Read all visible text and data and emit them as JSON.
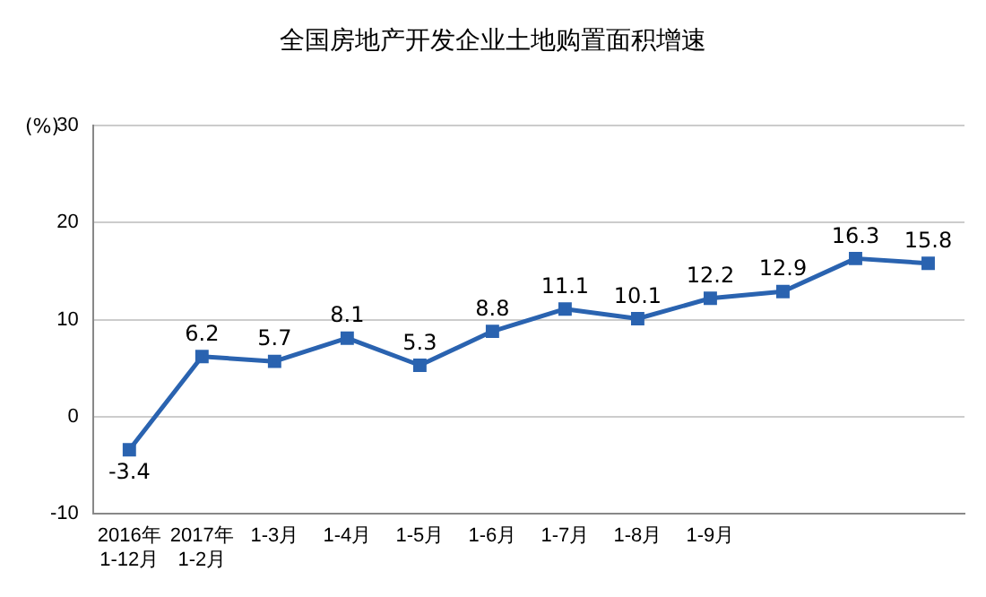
{
  "chart_data": {
    "type": "line",
    "title": "全国房地产开发企业土地购置面积增速",
    "ylabel": "(%)",
    "categories": [
      "2016年\n1-12月",
      "2017年\n1-2月",
      "1-3月",
      "1-4月",
      "1-5月",
      "1-6月",
      "1-7月",
      "1-8月",
      "1-9月",
      null,
      null,
      null
    ],
    "series": [
      {
        "color": "#2a63b0",
        "values": [
          -3.4,
          6.2,
          5.7,
          8.1,
          5.3,
          8.8,
          11.1,
          10.1,
          12.2,
          12.9,
          16.3,
          15.8
        ]
      }
    ],
    "ylim": [
      -10,
      30
    ],
    "yticks": [
      -10,
      0,
      10,
      20,
      30
    ],
    "grid": "y",
    "marker": "square",
    "line_style": "solid",
    "data_labels": true
  }
}
